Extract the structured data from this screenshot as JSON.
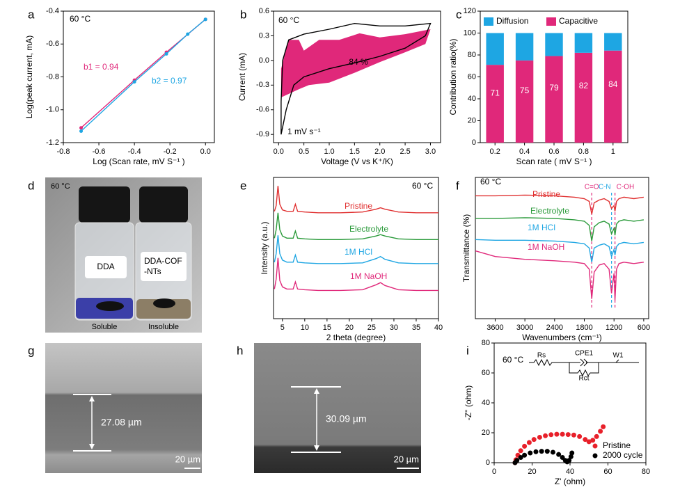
{
  "chart_data": [
    {
      "panel": "a",
      "type": "line",
      "xlabel": "Log (Scan rate,  mV S⁻¹ )",
      "ylabel": "Log(peak current, mA)",
      "xlim": [
        -0.8,
        0.05
      ],
      "xticks": [
        -0.8,
        -0.6,
        -0.4,
        -0.2,
        {
          "value": 0,
          "label": "0.0"
        }
      ],
      "ylim": [
        -1.2,
        -0.4
      ],
      "yticks": [
        -1.2,
        {
          "value": -1,
          "label": "-1.0"
        },
        -0.8,
        -0.6,
        -0.4
      ],
      "annotations": [
        {
          "text": "60 °C",
          "color": "#000000"
        },
        {
          "text": "b1 = 0.94",
          "color": "#e0287a"
        },
        {
          "text": "b2 = 0.97",
          "color": "#1ea6e3"
        }
      ],
      "series": [
        {
          "color": "#e0287a",
          "markers": true,
          "x": [
            -0.7,
            -0.4,
            -0.22,
            0
          ],
          "values": [
            -1.11,
            -0.82,
            -0.65,
            -0.45
          ]
        },
        {
          "color": "#1ea6e3",
          "markers": true,
          "x": [
            -0.7,
            -0.4,
            -0.22,
            -0.1,
            0
          ],
          "values": [
            -1.13,
            -0.83,
            -0.66,
            -0.54,
            -0.45
          ]
        }
      ]
    },
    {
      "panel": "b",
      "type": "line",
      "xlabel": "Voltage (V vs K⁺/K)",
      "ylabel": "Current (mA)",
      "xlim": [
        -0.1,
        3.2
      ],
      "xticks": [
        {
          "value": 0,
          "label": "0.0"
        },
        0.5,
        {
          "value": 1,
          "label": "1.0"
        },
        1.5,
        {
          "value": 2,
          "label": "2.0"
        },
        2.5,
        {
          "value": 3,
          "label": "3.0"
        }
      ],
      "ylim": [
        -1.0,
        0.6
      ],
      "yticks": [
        -0.9,
        -0.6,
        -0.3,
        {
          "value": 0,
          "label": "0.0"
        },
        0.3,
        0.6
      ],
      "annotations": [
        {
          "text": "60 °C",
          "color": "#000000"
        },
        {
          "text": "84 %",
          "color": "#000000"
        },
        {
          "text": "1 mV s⁻¹",
          "color": "#000000"
        }
      ],
      "series": [
        {
          "color": "#e0287a",
          "fill": true,
          "x": [
            0.05,
            0.4,
            0.6,
            1.0,
            1.5,
            2.0,
            2.5,
            2.9,
            3.0,
            2.5,
            2.0,
            1.6,
            1.2,
            0.8,
            0.5,
            0.4,
            0.2,
            0.05
          ],
          "values": [
            -0.45,
            -0.35,
            -0.3,
            -0.27,
            -0.15,
            -0.02,
            0.1,
            0.2,
            0.38,
            0.32,
            0.28,
            0.33,
            0.25,
            0.25,
            0.12,
            0.25,
            0.25,
            -0.1
          ]
        },
        {
          "color": "#000000",
          "x": [
            0.05,
            0.15,
            0.3,
            0.5,
            1.0,
            1.5,
            2.0,
            2.5,
            2.9,
            3.0,
            2.5,
            2.0,
            1.5,
            1.0,
            0.5,
            0.2,
            0.08,
            0.05,
            0.05
          ],
          "values": [
            -0.9,
            -0.6,
            -0.3,
            -0.2,
            -0.1,
            -0.03,
            0.05,
            0.15,
            0.3,
            0.45,
            0.42,
            0.42,
            0.45,
            0.38,
            0.32,
            0.25,
            0.0,
            -0.5,
            -0.9
          ]
        }
      ]
    },
    {
      "panel": "c",
      "type": "bar",
      "stacked": true,
      "data_labels": true,
      "legend": "top",
      "xlabel": "Scan rate ( mV S⁻¹ )",
      "ylabel": "Contribution ratio(%)",
      "categories": [
        "0.2",
        "0.4",
        "0.6",
        "0.8",
        "1"
      ],
      "ylim": [
        0,
        120
      ],
      "yticks": [
        0,
        20,
        40,
        60,
        80,
        100,
        120
      ],
      "series": [
        {
          "name": "Diffusion",
          "color": "#1ea6e3",
          "values": [
            29,
            25,
            21,
            18,
            16
          ]
        },
        {
          "name": "Capacitive",
          "color": "#e0287a",
          "values": [
            71,
            75,
            79,
            82,
            84
          ]
        }
      ]
    },
    {
      "panel": "e",
      "type": "line",
      "xlabel": "2 theta (degree)",
      "ylabel": "Intensity (a.u.)",
      "xlim": [
        3,
        40
      ],
      "xticks": [
        5,
        10,
        15,
        20,
        25,
        30,
        35,
        40
      ],
      "ylim": [
        0,
        10
      ],
      "annotations": [
        {
          "text": "60 °C",
          "color": "#000000"
        }
      ],
      "x": [
        3.2,
        3.6,
        4.0,
        4.4,
        5,
        6,
        7.4,
        7.9,
        8.4,
        10,
        13,
        18,
        23,
        26,
        27,
        28,
        31,
        35,
        40
      ],
      "series": [
        {
          "name": "Pristine",
          "color": "#e03030",
          "values": [
            7.6,
            8.0,
            9.4,
            8.1,
            7.7,
            7.6,
            7.6,
            8.1,
            7.6,
            7.55,
            7.5,
            7.5,
            7.55,
            7.75,
            7.85,
            7.75,
            7.55,
            7.5,
            7.5
          ]
        },
        {
          "name": "Electrolyte",
          "color": "#2a9a3a",
          "values": [
            5.7,
            6.3,
            7.5,
            6.3,
            5.85,
            5.7,
            5.7,
            6.2,
            5.7,
            5.65,
            5.6,
            5.6,
            5.65,
            5.85,
            5.95,
            5.85,
            5.65,
            5.6,
            5.6
          ]
        },
        {
          "name": "1M HCl",
          "color": "#1ea6e3",
          "values": [
            4.0,
            4.6,
            5.9,
            4.6,
            4.15,
            4.0,
            4.0,
            4.5,
            4.0,
            3.95,
            3.9,
            3.9,
            3.95,
            4.25,
            4.4,
            4.2,
            3.95,
            3.9,
            3.9
          ]
        },
        {
          "name": "1M NaOH",
          "color": "#e0287a",
          "values": [
            2.1,
            2.8,
            4.3,
            2.7,
            2.25,
            2.1,
            2.1,
            2.6,
            2.1,
            2.05,
            2.0,
            2.0,
            2.05,
            2.4,
            2.55,
            2.35,
            2.05,
            2.0,
            2.0
          ]
        }
      ]
    },
    {
      "panel": "f",
      "type": "line",
      "xlabel": "Wavenumbers (cm⁻¹)",
      "ylabel": "Transmittance (%)",
      "xlim": [
        4000,
        500
      ],
      "xticks": [
        3600,
        3000,
        2400,
        1800,
        1200,
        600
      ],
      "ylim": [
        0,
        10
      ],
      "annotations": [
        {
          "text": "60 °C",
          "color": "#000000"
        }
      ],
      "reference_lines": [
        {
          "label": "C=O",
          "x": 1650,
          "color": "#e0287a"
        },
        {
          "label": "C-N",
          "x": 1250,
          "color": "#1ea6e3"
        },
        {
          "label": "C-OH",
          "x": 1180,
          "color": "#e0287a"
        }
      ],
      "x": [
        4000,
        3600,
        3000,
        2400,
        2000,
        1800,
        1700,
        1650,
        1600,
        1500,
        1400,
        1300,
        1250,
        1200,
        1180,
        1150,
        1100,
        1000,
        800,
        600
      ],
      "series": [
        {
          "name": "Pristine",
          "color": "#e03030",
          "values": [
            8.7,
            8.7,
            8.75,
            8.7,
            8.6,
            8.5,
            8.3,
            7.4,
            8.2,
            8.4,
            8.5,
            8.3,
            7.8,
            8.0,
            7.6,
            8.3,
            8.5,
            8.6,
            8.5,
            8.6
          ]
        },
        {
          "name": "Electrolyte",
          "color": "#2a9a3a",
          "values": [
            7.1,
            7.1,
            7.15,
            7.1,
            7.0,
            6.9,
            6.6,
            5.5,
            6.5,
            6.8,
            6.9,
            6.7,
            6.0,
            6.4,
            5.9,
            6.7,
            6.9,
            7.0,
            6.9,
            7.0
          ]
        },
        {
          "name": "1M HCl",
          "color": "#1ea6e3",
          "values": [
            5.6,
            5.55,
            5.55,
            5.5,
            5.4,
            5.3,
            5.0,
            4.0,
            5.0,
            5.2,
            5.3,
            5.1,
            4.4,
            4.9,
            4.5,
            5.1,
            5.3,
            5.4,
            5.3,
            5.4
          ]
        },
        {
          "name": "1M NaOH",
          "color": "#e0287a",
          "values": [
            4.8,
            4.4,
            4.2,
            4.1,
            4.0,
            3.9,
            3.5,
            1.4,
            3.3,
            3.8,
            3.9,
            3.5,
            1.8,
            3.2,
            1.3,
            3.5,
            3.9,
            4.0,
            3.9,
            4.0
          ]
        }
      ]
    },
    {
      "panel": "i",
      "type": "scatter",
      "legend": "lower right",
      "xlabel": "Z' (ohm)",
      "ylabel": "-Z'' (ohm)",
      "xlim": [
        0,
        80
      ],
      "xticks": [
        0,
        20,
        40,
        60,
        80
      ],
      "ylim": [
        0,
        80
      ],
      "yticks": [
        0,
        20,
        40,
        60,
        80
      ],
      "annotations": [
        {
          "text": "60 °C",
          "color": "#000000"
        }
      ],
      "circuit": [
        "Rs",
        "CPE1",
        "Rct",
        "W1"
      ],
      "series": [
        {
          "name": "Pristine",
          "color": "#e8202a",
          "x": [
            11,
            11.5,
            12.5,
            14,
            16,
            18.5,
            21,
            24,
            27,
            30,
            33,
            36,
            39,
            42,
            45,
            48,
            50,
            52,
            54,
            56,
            57.5
          ],
          "values": [
            0,
            2,
            5,
            8,
            11,
            13.5,
            15.5,
            17,
            18,
            18.7,
            19,
            19,
            18.8,
            18.5,
            17.5,
            15.5,
            14,
            15,
            17.5,
            21,
            24
          ]
        },
        {
          "name": "2000 cycle",
          "color": "#000000",
          "x": [
            11,
            12,
            14,
            16,
            19,
            22,
            25,
            28,
            31,
            34,
            36,
            37.5,
            38.5,
            39.5,
            40.5,
            41
          ],
          "values": [
            0,
            1.5,
            3.5,
            5,
            6.5,
            7.3,
            7.6,
            7.6,
            7,
            5.5,
            3.5,
            1.5,
            0.5,
            1.5,
            4,
            6.5
          ]
        }
      ]
    }
  ],
  "photos": [
    {
      "panel": "d",
      "labels": [
        "60 °C",
        "DDA",
        "DDA-COF",
        "-NTs",
        "Soluble",
        "Insoluble"
      ]
    },
    {
      "panel": "g",
      "thickness": "27.08 µm",
      "scale_bar": "20 µm"
    },
    {
      "panel": "h",
      "thickness": "30.09 µm",
      "scale_bar": "20 µm"
    }
  ]
}
